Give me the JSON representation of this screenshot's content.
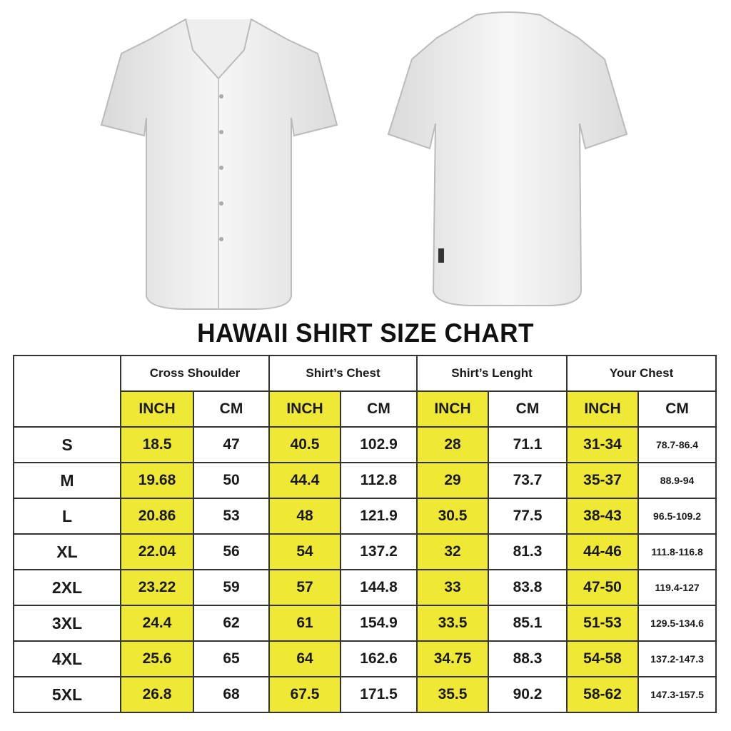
{
  "title": "HAWAII SHIRT SIZE CHART",
  "colors": {
    "highlight": "#efe935",
    "border": "#333333"
  },
  "images": [
    "shirt-front",
    "shirt-back"
  ],
  "groups": [
    "Cross Shoulder",
    "Shirt’s Chest",
    "Shirt’s Lenght",
    "Your Chest"
  ],
  "units": [
    "INCH",
    "CM",
    "INCH",
    "CM",
    "INCH",
    "CM",
    "INCH",
    "CM"
  ],
  "rows": [
    {
      "size": "S",
      "values": [
        "18.5",
        "47",
        "40.5",
        "102.9",
        "28",
        "71.1",
        "31-34",
        "78.7-86.4"
      ]
    },
    {
      "size": "M",
      "values": [
        "19.68",
        "50",
        "44.4",
        "112.8",
        "29",
        "73.7",
        "35-37",
        "88.9-94"
      ]
    },
    {
      "size": "L",
      "values": [
        "20.86",
        "53",
        "48",
        "121.9",
        "30.5",
        "77.5",
        "38-43",
        "96.5-109.2"
      ]
    },
    {
      "size": "XL",
      "values": [
        "22.04",
        "56",
        "54",
        "137.2",
        "32",
        "81.3",
        "44-46",
        "111.8-116.8"
      ]
    },
    {
      "size": "2XL",
      "values": [
        "23.22",
        "59",
        "57",
        "144.8",
        "33",
        "83.8",
        "47-50",
        "119.4-127"
      ]
    },
    {
      "size": "3XL",
      "values": [
        "24.4",
        "62",
        "61",
        "154.9",
        "33.5",
        "85.1",
        "51-53",
        "129.5-134.6"
      ]
    },
    {
      "size": "4XL",
      "values": [
        "25.6",
        "65",
        "64",
        "162.6",
        "34.75",
        "88.3",
        "54-58",
        "137.2-147.3"
      ]
    },
    {
      "size": "5XL",
      "values": [
        "26.8",
        "68",
        "67.5",
        "171.5",
        "35.5",
        "90.2",
        "58-62",
        "147.3-157.5"
      ]
    }
  ]
}
